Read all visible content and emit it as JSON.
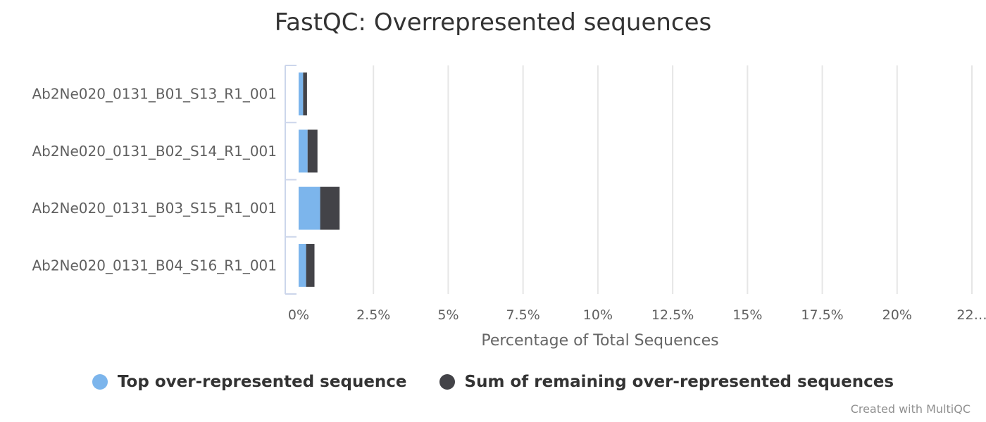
{
  "chart_data": {
    "type": "bar",
    "orientation": "horizontal",
    "stacked": true,
    "title": "FastQC: Overrepresented sequences",
    "xlabel": "Percentage of Total Sequences",
    "ylabel": "",
    "categories": [
      "Ab2Ne020_0131_B01_S13_R1_001",
      "Ab2Ne020_0131_B02_S14_R1_001",
      "Ab2Ne020_0131_B03_S15_R1_001",
      "Ab2Ne020_0131_B04_S16_R1_001"
    ],
    "series": [
      {
        "name": "Top over-represented sequence",
        "color": "#7cb5ec",
        "values": [
          0.15,
          0.3,
          0.72,
          0.25
        ]
      },
      {
        "name": "Sum of remaining over-represented sequences",
        "color": "#434348",
        "values": [
          0.13,
          0.33,
          0.65,
          0.28
        ]
      }
    ],
    "xlim": [
      0,
      22.5
    ],
    "xticks": [
      "0%",
      "2.5%",
      "5%",
      "7.5%",
      "10%",
      "12.5%",
      "15%",
      "17.5%",
      "20%",
      "22…"
    ],
    "xtick_values": [
      0,
      2.5,
      5,
      7.5,
      10,
      12.5,
      15,
      17.5,
      20,
      22.5
    ],
    "grid": true,
    "legend_position": "bottom-center"
  },
  "credits": "Created with MultiQC"
}
